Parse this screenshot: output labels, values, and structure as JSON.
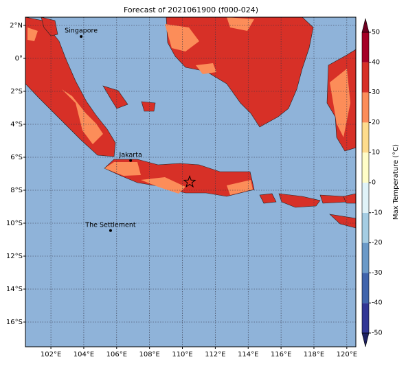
{
  "map": {
    "title": "Forecast of 2021061900 (f000-024)",
    "lon_lim": [
      100.45,
      120.55
    ],
    "lat_lim": [
      -17.5,
      2.5
    ],
    "lon_ticks": [
      {
        "value": 102,
        "label": "102°E"
      },
      {
        "value": 104,
        "label": "104°E"
      },
      {
        "value": 106,
        "label": "106°E"
      },
      {
        "value": 108,
        "label": "108°E"
      },
      {
        "value": 110,
        "label": "110°E"
      },
      {
        "value": 112,
        "label": "112°E"
      },
      {
        "value": 114,
        "label": "114°E"
      },
      {
        "value": 116,
        "label": "116°E"
      },
      {
        "value": 118,
        "label": "118°E"
      },
      {
        "value": 120,
        "label": "120°E"
      }
    ],
    "lat_ticks": [
      {
        "value": 2,
        "label": "2°N"
      },
      {
        "value": 0,
        "label": "0°"
      },
      {
        "value": -2,
        "label": "2°S"
      },
      {
        "value": -4,
        "label": "4°S"
      },
      {
        "value": -6,
        "label": "6°S"
      },
      {
        "value": -8,
        "label": "8°S"
      },
      {
        "value": -10,
        "label": "10°S"
      },
      {
        "value": -12,
        "label": "12°S"
      },
      {
        "value": -14,
        "label": "14°S"
      },
      {
        "value": -16,
        "label": "16°S"
      }
    ],
    "cities": [
      {
        "name": "Singapore",
        "lon": 103.84,
        "lat": 1.33
      },
      {
        "name": "Jakarta",
        "lon": 106.85,
        "lat": -6.2
      },
      {
        "name": "The Settlement",
        "lon": 105.63,
        "lat": -10.45
      }
    ],
    "marker": {
      "lon": 110.44,
      "lat": -7.5
    },
    "colorbar": {
      "label": "Max Temperature (°C)",
      "lim": [
        -50,
        50
      ],
      "ticks": [
        -50,
        -40,
        -30,
        -20,
        -10,
        0,
        10,
        20,
        30,
        40,
        50
      ],
      "colors": [
        "#313695",
        "#4064ac",
        "#6b9ac8",
        "#a5cde3",
        "#e0f3f8",
        "#fffdc8",
        "#fedc8d",
        "#fc8d59",
        "#d73027",
        "#a50026"
      ],
      "under_color": "#1e2262",
      "over_color": "#6e0020"
    }
  }
}
